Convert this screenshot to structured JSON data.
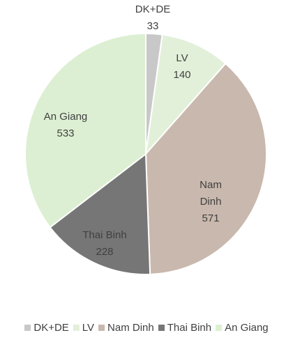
{
  "chart_data": {
    "type": "pie",
    "title": "",
    "slices": [
      {
        "label": "DK+DE",
        "value": 33,
        "value_label": "33",
        "color": "#c8c8c8"
      },
      {
        "label": "LV",
        "value": 140,
        "value_label": "140",
        "color": "#e2f0d9"
      },
      {
        "label": "Nam Dinh",
        "value": 571,
        "value_label": "571",
        "color": "#c9b8ad"
      },
      {
        "label": "Thai Binh",
        "value": 228,
        "value_label": "228",
        "color": "#767676"
      },
      {
        "label": "An Giang",
        "value": 533,
        "value_label": "533",
        "color": "#dcefd2"
      }
    ],
    "legend_placement": "bottom"
  }
}
